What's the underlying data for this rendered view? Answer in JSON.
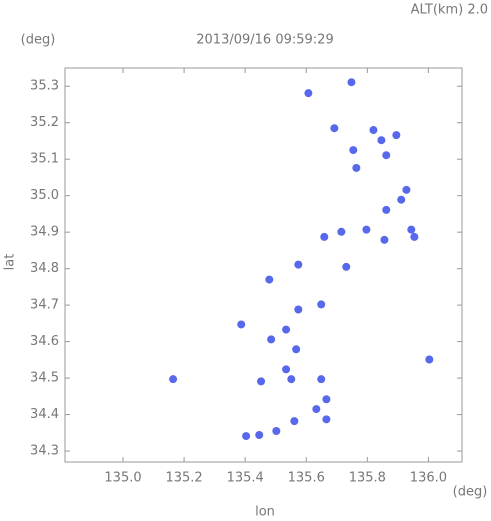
{
  "chart_data": {
    "type": "scatter",
    "title": "2013/09/16 09:59:29",
    "subtitle": "ALT(km) 2.0",
    "x_label": "lon",
    "x_unit": "(deg)",
    "y_label": "lat",
    "y_unit": "(deg)",
    "color": "#3a4de8",
    "xlim": [
      134.81,
      136.11
    ],
    "ylim": [
      34.27,
      35.35
    ],
    "xticks": [
      {
        "value": 135,
        "label": "135.0"
      },
      135.2,
      135.4,
      135.6,
      135.8,
      {
        "value": 136,
        "label": "136.0"
      }
    ],
    "yticks": [
      34.3,
      34.4,
      34.5,
      34.6,
      34.7,
      34.8,
      34.9,
      {
        "value": 35,
        "label": "35.0"
      },
      35.1,
      35.2,
      35.3
    ],
    "x": [
      135.748,
      135.607,
      135.692,
      135.846,
      135.82,
      135.895,
      135.862,
      135.754,
      135.764,
      135.928,
      135.862,
      135.911,
      135.944,
      135.954,
      135.797,
      135.856,
      135.715,
      135.659,
      135.574,
      135.731,
      135.479,
      135.649,
      135.574,
      135.387,
      135.534,
      135.485,
      135.567,
      135.534,
      135.551,
      135.452,
      135.649,
      135.666,
      135.633,
      135.666,
      136.003,
      135.164,
      135.561,
      135.502,
      135.446,
      135.403
    ],
    "values": [
      35.311,
      35.281,
      35.185,
      35.152,
      35.18,
      35.166,
      35.111,
      35.125,
      35.076,
      35.016,
      34.961,
      34.989,
      34.907,
      34.887,
      34.907,
      34.879,
      34.901,
      34.887,
      34.811,
      34.805,
      34.77,
      34.702,
      34.688,
      34.647,
      34.633,
      34.606,
      34.579,
      34.524,
      34.497,
      34.491,
      34.497,
      34.442,
      34.415,
      34.387,
      34.551,
      34.497,
      34.382,
      34.355,
      34.344,
      34.341
    ]
  }
}
